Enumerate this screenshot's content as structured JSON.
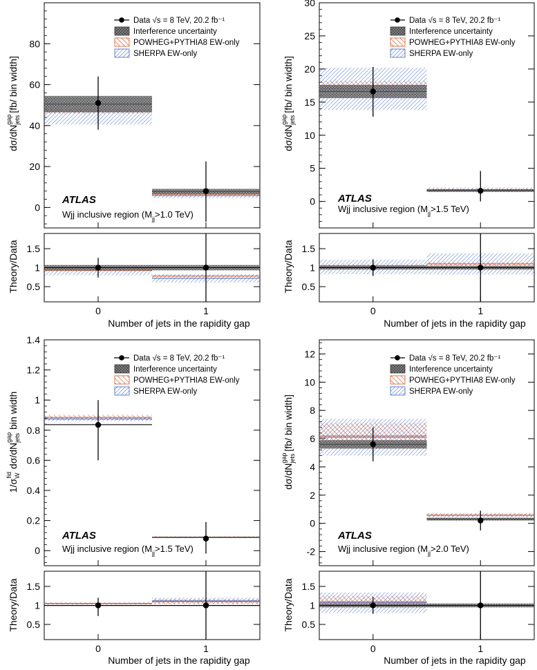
{
  "figure": {
    "experiment": "ATLAS",
    "x_axis_label": "Number of jets in the rapidity gap",
    "ratio_ylabel": "Theory/Data",
    "legend": {
      "data": "Data √s = 8 TeV, 20.2 fb⁻¹",
      "interference": "Interference uncertainty",
      "powheg": "POWHEG+PYTHIA8 EW-only",
      "sherpa": "SHERPA EW-only"
    }
  },
  "colors": {
    "data": "#000000",
    "interference": "#3a3a3a",
    "powheg": "#d9541e",
    "sherpa": "#3c64c8"
  },
  "chart_data": [
    {
      "type": "bar",
      "panel": "top-left",
      "region_label": "Wjj inclusive region (M",
      "region_sub": "jj",
      "region_cut": ">1.0 TeV)",
      "ylabel": "dσ/dN",
      "ylabel_sup": "gap",
      "ylabel_sub": "jets",
      "ylabel_tail": "[fb/ bin width]",
      "categories": [
        "0",
        "1"
      ],
      "ylim": [
        -10,
        100
      ],
      "yticks": [
        0,
        20,
        40,
        60,
        80
      ],
      "data": {
        "values": [
          51,
          8
        ],
        "err_low": [
          13,
          15
        ],
        "err_high": [
          13,
          14.5
        ]
      },
      "interference": {
        "values": [
          50.5,
          7.8
        ],
        "err": [
          4,
          1.3
        ]
      },
      "powheg": {
        "values": [
          47,
          6.5
        ],
        "err": [
          1.3,
          0.7
        ]
      },
      "sherpa": {
        "values": [
          47,
          5.8
        ],
        "err": [
          6.5,
          1.2
        ]
      },
      "ratio": {
        "ylim": [
          0.1,
          1.9
        ],
        "yticks": [
          0.5,
          1,
          1.5
        ],
        "data_err_low": [
          0.26,
          1
        ],
        "data_err_high": [
          0.26,
          1
        ],
        "interference": {
          "values": [
            1.0,
            1.0
          ],
          "err": [
            0.07,
            0.07
          ]
        },
        "powheg": {
          "values": [
            0.93,
            0.78
          ],
          "err": [
            0.03,
            0.02
          ]
        },
        "sherpa": {
          "values": [
            0.93,
            0.72
          ],
          "err": [
            0.13,
            0.11
          ]
        }
      }
    },
    {
      "type": "bar",
      "panel": "top-right",
      "region_label": "Wjj inclusive region (M",
      "region_sub": "jj",
      "region_cut": ">1.5 TeV)",
      "ylabel": "dσ/dN",
      "ylabel_sup": "gap",
      "ylabel_sub": "jets",
      "ylabel_tail": "[fb/ bin width]",
      "categories": [
        "0",
        "1"
      ],
      "ylim": [
        -4,
        30
      ],
      "yticks": [
        0,
        5,
        10,
        15,
        20,
        25,
        30
      ],
      "data": {
        "values": [
          16.6,
          1.6
        ],
        "err_low": [
          3.8,
          1.6
        ],
        "err_high": [
          3.7,
          3.0
        ]
      },
      "interference": {
        "values": [
          16.6,
          1.65
        ],
        "err": [
          1.0,
          0.2
        ]
      },
      "powheg": {
        "values": [
          17.5,
          1.75
        ],
        "err": [
          0.7,
          0.2
        ]
      },
      "sherpa": {
        "values": [
          17.0,
          1.75
        ],
        "err": [
          3.2,
          0.35
        ]
      },
      "ratio": {
        "ylim": [
          0.1,
          1.9
        ],
        "yticks": [
          0.5,
          1,
          1.5
        ],
        "data_err_low": [
          0.22,
          1
        ],
        "data_err_high": [
          0.22,
          1
        ],
        "interference": {
          "values": [
            1.0,
            1.0
          ],
          "err": [
            0.05,
            0.05
          ]
        },
        "powheg": {
          "values": [
            1.05,
            1.1
          ],
          "err": [
            0.04,
            0.05
          ]
        },
        "sherpa": {
          "values": [
            1.02,
            1.1
          ],
          "err": [
            0.19,
            0.28
          ]
        }
      }
    },
    {
      "type": "bar",
      "panel": "bottom-left",
      "region_label": "Wjj inclusive region (M",
      "region_sub": "jj",
      "region_cut": ">1.5 TeV)",
      "ylabel": "1/σ",
      "ylabel_sup": "fid",
      "ylabel_sub": "W",
      "ylabel_tail": " dσ/dN",
      "ylabel_sup2": "gap",
      "ylabel_sub2": "jets",
      "ylabel_tail2": " bin width",
      "categories": [
        "0",
        "1"
      ],
      "ylim": [
        -0.1,
        1.4
      ],
      "yticks": [
        0,
        0.2,
        0.4,
        0.6,
        0.8,
        1,
        1.2,
        1.4
      ],
      "data": {
        "values": [
          0.835,
          0.08
        ],
        "err_low": [
          0.235,
          0.1
        ],
        "err_high": [
          0.165,
          0.11
        ]
      },
      "interference": {
        "values": [
          0.837,
          0.088
        ],
        "err": [
          0.004,
          0.003
        ]
      },
      "powheg": {
        "values": [
          0.885,
          0.09
        ],
        "err": [
          0.018,
          0.005
        ]
      },
      "sherpa": {
        "values": [
          0.875,
          0.09
        ],
        "err": [
          0.015,
          0.005
        ]
      },
      "ratio": {
        "ylim": [
          0.1,
          1.9
        ],
        "yticks": [
          0.5,
          1,
          1.5
        ],
        "data_err_low": [
          0.28,
          1
        ],
        "data_err_high": [
          0.2,
          1
        ],
        "interference": {
          "values": [
            1.0,
            1.0
          ],
          "err": [
            0.01,
            0.01
          ]
        },
        "powheg": {
          "values": [
            1.05,
            1.1
          ],
          "err": [
            0.03,
            0.07
          ]
        },
        "sherpa": {
          "values": [
            1.05,
            1.12
          ],
          "err": [
            0.02,
            0.08
          ]
        }
      }
    },
    {
      "type": "bar",
      "panel": "bottom-right",
      "region_label": "Wjj inclusive region (M",
      "region_sub": "jj",
      "region_cut": ">2.0 TeV)",
      "ylabel": "dσ/dN",
      "ylabel_sup": "gap",
      "ylabel_sub": "jets",
      "ylabel_tail": "[fb/ bin width]",
      "categories": [
        "0",
        "1"
      ],
      "ylim": [
        -3,
        13
      ],
      "yticks": [
        -2,
        0,
        2,
        4,
        6,
        8,
        10,
        12
      ],
      "data": {
        "values": [
          5.6,
          0.2
        ],
        "err_low": [
          1.2,
          0.7
        ],
        "err_high": [
          1.2,
          0.7
        ]
      },
      "interference": {
        "values": [
          5.6,
          0.3
        ],
        "err": [
          0.3,
          0.1
        ]
      },
      "powheg": {
        "values": [
          6.2,
          0.58
        ],
        "err": [
          0.9,
          0.1
        ]
      },
      "sherpa": {
        "values": [
          6.1,
          0.58
        ],
        "err": [
          1.3,
          0.15
        ]
      },
      "ratio": {
        "ylim": [
          0.1,
          1.9
        ],
        "yticks": [
          0.5,
          1,
          1.5
        ],
        "data_err_low": [
          0.22,
          1
        ],
        "data_err_high": [
          0.22,
          1
        ],
        "interference": {
          "values": [
            1.0,
            1.0
          ],
          "err": [
            0.05,
            0.05
          ]
        },
        "powheg": {
          "values": [
            1.1,
            1.0
          ],
          "err": [
            0.15,
            0.03
          ]
        },
        "sherpa": {
          "values": [
            1.07,
            1.0
          ],
          "err": [
            0.27,
            0.04
          ]
        }
      }
    }
  ]
}
